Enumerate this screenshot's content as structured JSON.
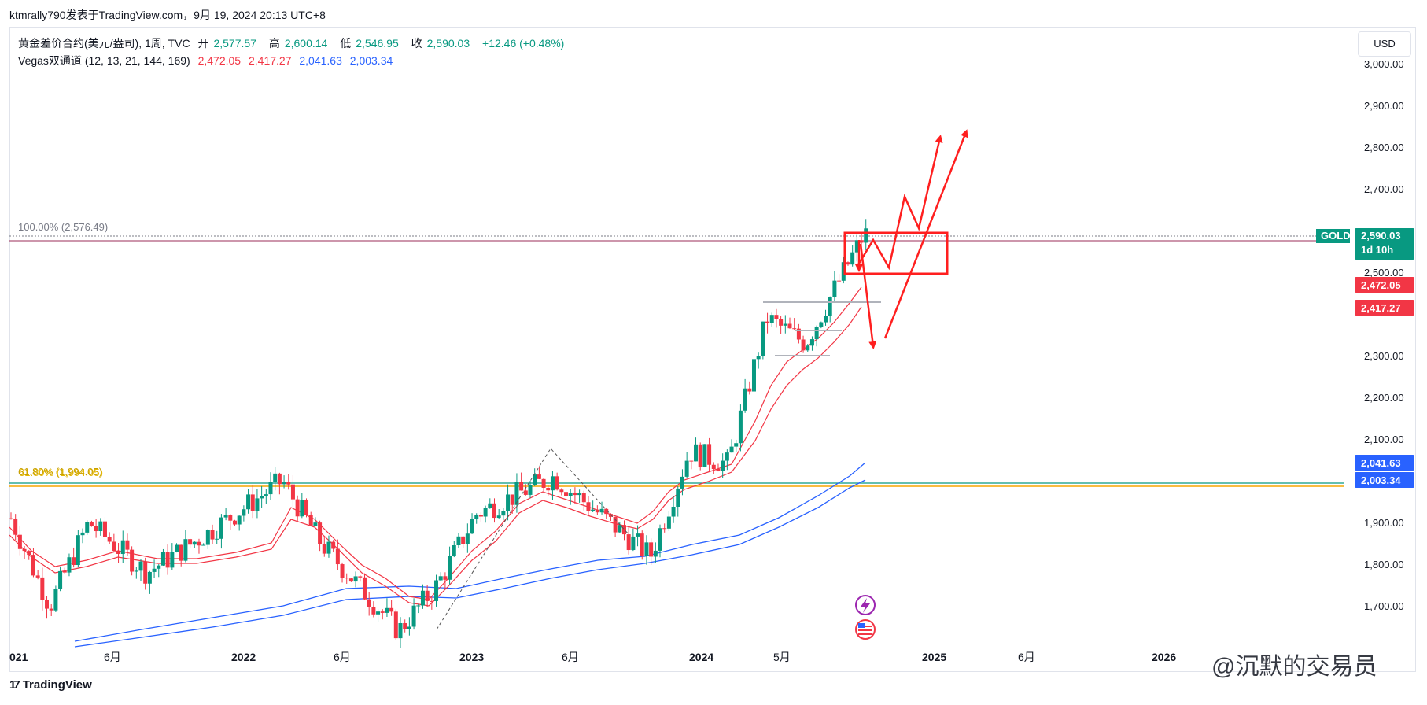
{
  "header": {
    "source_line": "ktmrally790发表于TradingView.com，9月 19, 2024 20:13 UTC+8"
  },
  "legend": {
    "symbol_line": "黄金差价合约(美元/盎司), 1周, TVC",
    "open_label": "开",
    "open_value": "2,577.57",
    "high_label": "高",
    "high_value": "2,600.14",
    "low_label": "低",
    "low_value": "2,546.95",
    "close_label": "收",
    "close_value": "2,590.03",
    "change_value": "+12.46 (+0.48%)",
    "indicator_name": "Vegas双通道 (12, 13, 21, 144, 169)",
    "ind_v1": "2,472.05",
    "ind_v2": "2,417.27",
    "ind_v3": "2,041.63",
    "ind_v4": "2,003.34"
  },
  "currency_button": "USD",
  "fib_levels": {
    "top_label": "100.00% (2,576.49)",
    "bottom_label": "61.80% (1,994.05)"
  },
  "price_tags": {
    "gold_symbol": "GOLD",
    "gold_price": "2,590.03",
    "countdown": "1d 10h",
    "ema_fast_1": "2,472.05",
    "ema_fast_2": "2,417.27",
    "ema_slow_1": "2,041.63",
    "ema_slow_2": "2,003.34"
  },
  "footer": {
    "brand": "TradingView"
  },
  "watermark": "@沉默的交易员",
  "colors": {
    "up": "#089981",
    "down": "#f23645",
    "ema_fast": "#f23645",
    "ema_slow": "#2962ff",
    "fib_top": "#787b86",
    "fib_618_a": "#f7a600",
    "fib_618_b": "#089981",
    "arrow": "#ff1f1f"
  },
  "chart_data": {
    "type": "candlestick",
    "title": "黄金差价合约(美元/盎司), 1周, TVC",
    "timeframe": "1周",
    "x_axis_labels": [
      "021",
      "6月",
      "2022",
      "6月",
      "2023",
      "6月",
      "2024",
      "5月",
      "2025",
      "6月",
      "2026"
    ],
    "y_axis_labels": [
      "3,000.00",
      "2,900.00",
      "2,800.00",
      "2,700.00",
      "2,500.00",
      "2,300.00",
      "2,200.00",
      "2,100.00",
      "1,900.00",
      "1,800.00",
      "1,700.00"
    ],
    "ylim": [
      1600,
      3030
    ],
    "price_path_weekly_close_approx": [
      {
        "date": "2021-01",
        "value": 1910
      },
      {
        "date": "2021-03",
        "value": 1700
      },
      {
        "date": "2021-05",
        "value": 1900
      },
      {
        "date": "2021-08",
        "value": 1780
      },
      {
        "date": "2021-11",
        "value": 1870
      },
      {
        "date": "2022-03",
        "value": 2000
      },
      {
        "date": "2022-05",
        "value": 1850
      },
      {
        "date": "2022-09",
        "value": 1640
      },
      {
        "date": "2022-11",
        "value": 1750
      },
      {
        "date": "2023-01",
        "value": 1920
      },
      {
        "date": "2023-05",
        "value": 2010
      },
      {
        "date": "2023-10",
        "value": 1820
      },
      {
        "date": "2023-12",
        "value": 2070
      },
      {
        "date": "2024-02",
        "value": 2040
      },
      {
        "date": "2024-04",
        "value": 2390
      },
      {
        "date": "2024-06",
        "value": 2330
      },
      {
        "date": "2024-09",
        "value": 2590
      }
    ],
    "last_bar": {
      "open": 2577.57,
      "high": 2600.14,
      "low": 2546.95,
      "close": 2590.03,
      "change": 12.46,
      "change_pct": 0.48
    },
    "indicators": [
      {
        "name": "EMA12/13 channel",
        "current": [
          2472.05,
          2417.27
        ]
      },
      {
        "name": "EMA144/169 channel",
        "current": [
          2041.63,
          2003.34
        ]
      }
    ],
    "fibonacci": [
      {
        "level": "100.00%",
        "price": 2576.49
      },
      {
        "level": "61.80%",
        "price": 1994.05
      }
    ]
  }
}
